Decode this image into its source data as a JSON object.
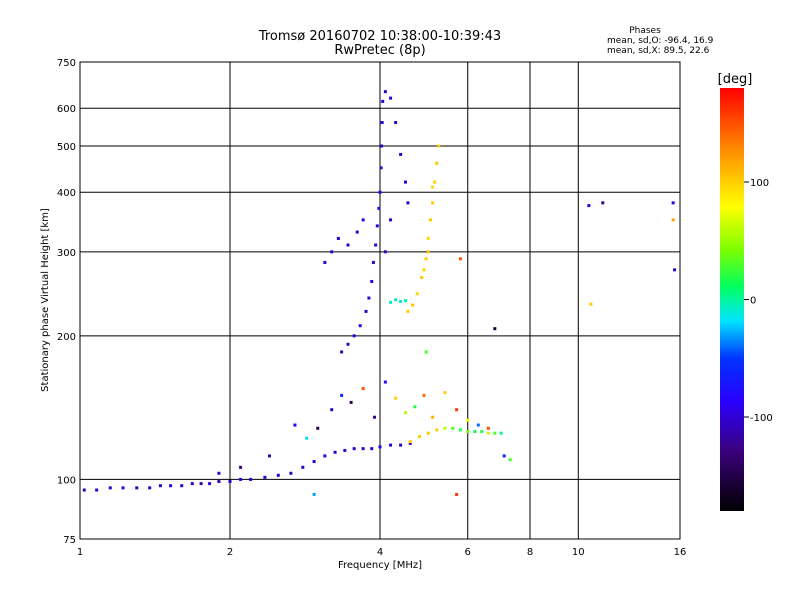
{
  "chart_data": {
    "type": "scatter",
    "title": "Tromsø 20160702 10:38:00-10:39:43",
    "subtitle": "RwPretec (8p)",
    "xlabel": "Frequency [MHz]",
    "ylabel": "Stationary phase Virtual Height [km]",
    "x_scale": "log",
    "y_scale": "log",
    "xlim": [
      1,
      16
    ],
    "ylim": [
      75,
      750
    ],
    "x_ticks": [
      1,
      2,
      4,
      6,
      8,
      10,
      16
    ],
    "x_tick_labels": [
      "1",
      "2",
      "4",
      "6",
      "8",
      "10",
      "16"
    ],
    "y_ticks": [
      75,
      100,
      200,
      300,
      400,
      500,
      600,
      750
    ],
    "y_tick_labels": [
      "75",
      "100",
      "200",
      "300",
      "400",
      "500",
      "600",
      "750"
    ],
    "grid": true,
    "stats": {
      "heading": "Phases",
      "line_o": "mean, sd,O: -96.4, 16.9",
      "line_x": "mean, sd,X: 89.5, 22.6"
    },
    "colorbar": {
      "label": "[deg]",
      "range": [
        -180,
        180
      ],
      "ticks": [
        -100,
        0,
        100
      ],
      "tick_labels": [
        "-100",
        "0",
        "100"
      ]
    },
    "series": [
      {
        "points": [
          [
            1.02,
            95,
            -105
          ],
          [
            1.08,
            95,
            -100
          ],
          [
            1.15,
            96,
            -110
          ],
          [
            1.22,
            96,
            -95
          ],
          [
            1.3,
            96,
            -108
          ],
          [
            1.38,
            96,
            -102
          ],
          [
            1.45,
            97,
            -112
          ],
          [
            1.52,
            97,
            -98
          ],
          [
            1.6,
            97,
            -104
          ],
          [
            1.68,
            98,
            -100
          ],
          [
            1.75,
            98,
            -115
          ],
          [
            1.82,
            98,
            -95
          ],
          [
            1.9,
            99,
            -110
          ],
          [
            2.0,
            99,
            -100
          ],
          [
            2.1,
            100,
            -98
          ],
          [
            2.2,
            100,
            -112
          ],
          [
            2.35,
            101,
            -100
          ],
          [
            2.5,
            102,
            -96
          ],
          [
            2.65,
            103,
            -105
          ],
          [
            2.8,
            106,
            -100
          ],
          [
            2.95,
            109,
            -102
          ],
          [
            3.1,
            112,
            -98
          ],
          [
            3.25,
            114,
            -105
          ],
          [
            3.4,
            115,
            -100
          ],
          [
            3.55,
            116,
            -96
          ],
          [
            3.7,
            116,
            -110
          ],
          [
            3.85,
            116,
            -104
          ],
          [
            4.0,
            117,
            -100
          ],
          [
            4.2,
            118,
            -98
          ],
          [
            4.4,
            118,
            -106
          ],
          [
            4.6,
            119,
            -100
          ]
        ]
      },
      {
        "points": [
          [
            3.35,
            185,
            -110
          ],
          [
            3.45,
            192,
            -105
          ],
          [
            3.55,
            200,
            -100
          ],
          [
            3.65,
            210,
            -98
          ],
          [
            3.75,
            225,
            -104
          ],
          [
            3.8,
            240,
            -100
          ],
          [
            3.85,
            260,
            -96
          ],
          [
            3.88,
            285,
            -102
          ],
          [
            3.92,
            310,
            -100
          ],
          [
            3.95,
            340,
            -105
          ],
          [
            3.98,
            370,
            -98
          ],
          [
            4.0,
            400,
            -100
          ],
          [
            4.02,
            450,
            -104
          ],
          [
            4.03,
            500,
            -100
          ],
          [
            4.04,
            560,
            -96
          ],
          [
            4.05,
            620,
            -102
          ],
          [
            4.1,
            650,
            -100
          ],
          [
            4.2,
            630,
            -98
          ],
          [
            4.3,
            560,
            -104
          ],
          [
            4.4,
            480,
            -100
          ],
          [
            4.5,
            420,
            -96
          ],
          [
            4.55,
            380,
            -102
          ],
          [
            4.2,
            350,
            -100
          ],
          [
            4.1,
            300,
            -108
          ]
        ]
      },
      {
        "points": [
          [
            3.1,
            285,
            -100
          ],
          [
            3.2,
            300,
            -104
          ],
          [
            3.3,
            320,
            -96
          ],
          [
            3.45,
            310,
            -100
          ],
          [
            3.6,
            330,
            -102
          ],
          [
            3.7,
            350,
            -98
          ]
        ]
      },
      {
        "points": [
          [
            4.55,
            225,
            100
          ],
          [
            4.65,
            232,
            104
          ],
          [
            4.75,
            245,
            98
          ],
          [
            4.85,
            265,
            102
          ],
          [
            4.95,
            290,
            100
          ],
          [
            5.0,
            320,
            96
          ],
          [
            5.05,
            350,
            104
          ],
          [
            5.1,
            380,
            100
          ],
          [
            5.15,
            420,
            98
          ],
          [
            5.2,
            460,
            102
          ],
          [
            5.25,
            500,
            100
          ],
          [
            5.1,
            410,
            96
          ],
          [
            5.0,
            300,
            104
          ],
          [
            4.9,
            275,
            100
          ]
        ]
      },
      {
        "points": [
          [
            4.2,
            235,
            -10
          ],
          [
            4.3,
            238,
            -5
          ],
          [
            4.4,
            236,
            -12
          ],
          [
            4.5,
            237,
            2
          ]
        ]
      },
      {
        "points": [
          [
            4.6,
            120,
            100
          ],
          [
            4.8,
            123,
            98
          ],
          [
            5.0,
            125,
            104
          ],
          [
            5.2,
            127,
            100
          ],
          [
            5.4,
            128,
            60
          ],
          [
            5.6,
            128,
            30
          ],
          [
            5.8,
            127,
            20
          ],
          [
            6.0,
            126,
            40
          ],
          [
            6.2,
            126,
            10
          ],
          [
            6.4,
            126,
            20
          ],
          [
            6.6,
            125,
            60
          ],
          [
            6.8,
            125,
            30
          ],
          [
            7.0,
            125,
            0
          ]
        ]
      },
      {
        "points": [
          [
            3.2,
            140,
            -110
          ],
          [
            3.35,
            150,
            -60
          ],
          [
            3.5,
            145,
            -140
          ],
          [
            3.7,
            155,
            150
          ],
          [
            3.9,
            135,
            -120
          ],
          [
            4.1,
            160,
            -80
          ],
          [
            4.3,
            148,
            100
          ],
          [
            4.5,
            138,
            60
          ],
          [
            4.7,
            142,
            20
          ],
          [
            4.9,
            150,
            140
          ],
          [
            5.1,
            135,
            110
          ],
          [
            5.4,
            152,
            100
          ],
          [
            5.7,
            140,
            160
          ],
          [
            6.0,
            133,
            70
          ],
          [
            6.3,
            130,
            -40
          ],
          [
            6.6,
            128,
            150
          ],
          [
            7.1,
            112,
            -60
          ],
          [
            7.3,
            110,
            30
          ],
          [
            2.7,
            130,
            -90
          ],
          [
            2.85,
            122,
            -20
          ],
          [
            3.0,
            128,
            -150
          ],
          [
            2.4,
            112,
            -110
          ],
          [
            2.1,
            106,
            -130
          ],
          [
            1.9,
            103,
            -100
          ]
        ]
      },
      {
        "points": [
          [
            10.5,
            375,
            -100
          ],
          [
            11.2,
            380,
            -120
          ],
          [
            15.5,
            380,
            -100
          ],
          [
            15.5,
            350,
            120
          ],
          [
            15.6,
            275,
            -100
          ],
          [
            10.6,
            233,
            100
          ],
          [
            5.8,
            290,
            150
          ],
          [
            4.95,
            185,
            30
          ],
          [
            6.8,
            207,
            -160
          ],
          [
            5.7,
            93,
            160
          ],
          [
            2.95,
            93,
            -30
          ]
        ]
      }
    ]
  }
}
